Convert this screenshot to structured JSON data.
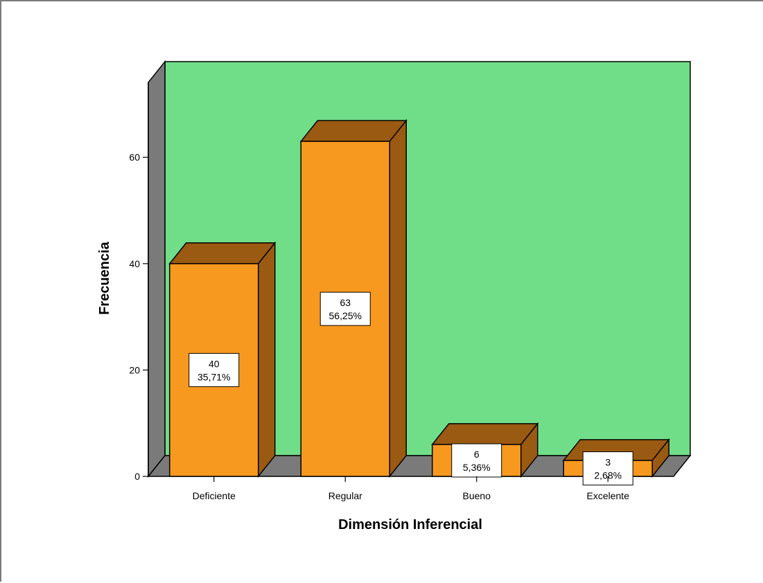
{
  "chart_data": {
    "type": "bar",
    "style": "3d",
    "categories": [
      "Deficiente",
      "Regular",
      "Bueno",
      "Excelente"
    ],
    "values": [
      40,
      63,
      6,
      3
    ],
    "percent_labels": [
      "35,71%",
      "56,25%",
      "5,36%",
      "2,68%"
    ],
    "xlabel": "Dimensión Inferencial",
    "ylabel": "Frecuencia",
    "yticks": [
      0,
      20,
      40,
      60
    ],
    "ylim": [
      0,
      78
    ],
    "grid": false,
    "legend": "none",
    "colors": {
      "bar_front": "#f7991f",
      "bar_top": "#9a5a12",
      "bar_side": "#9a5a12",
      "back_wall": "#70de88",
      "side_wall": "#7a7a7a",
      "floor": "#7a7a7a",
      "label_box": "#ffffff",
      "outline": "#000000"
    }
  }
}
